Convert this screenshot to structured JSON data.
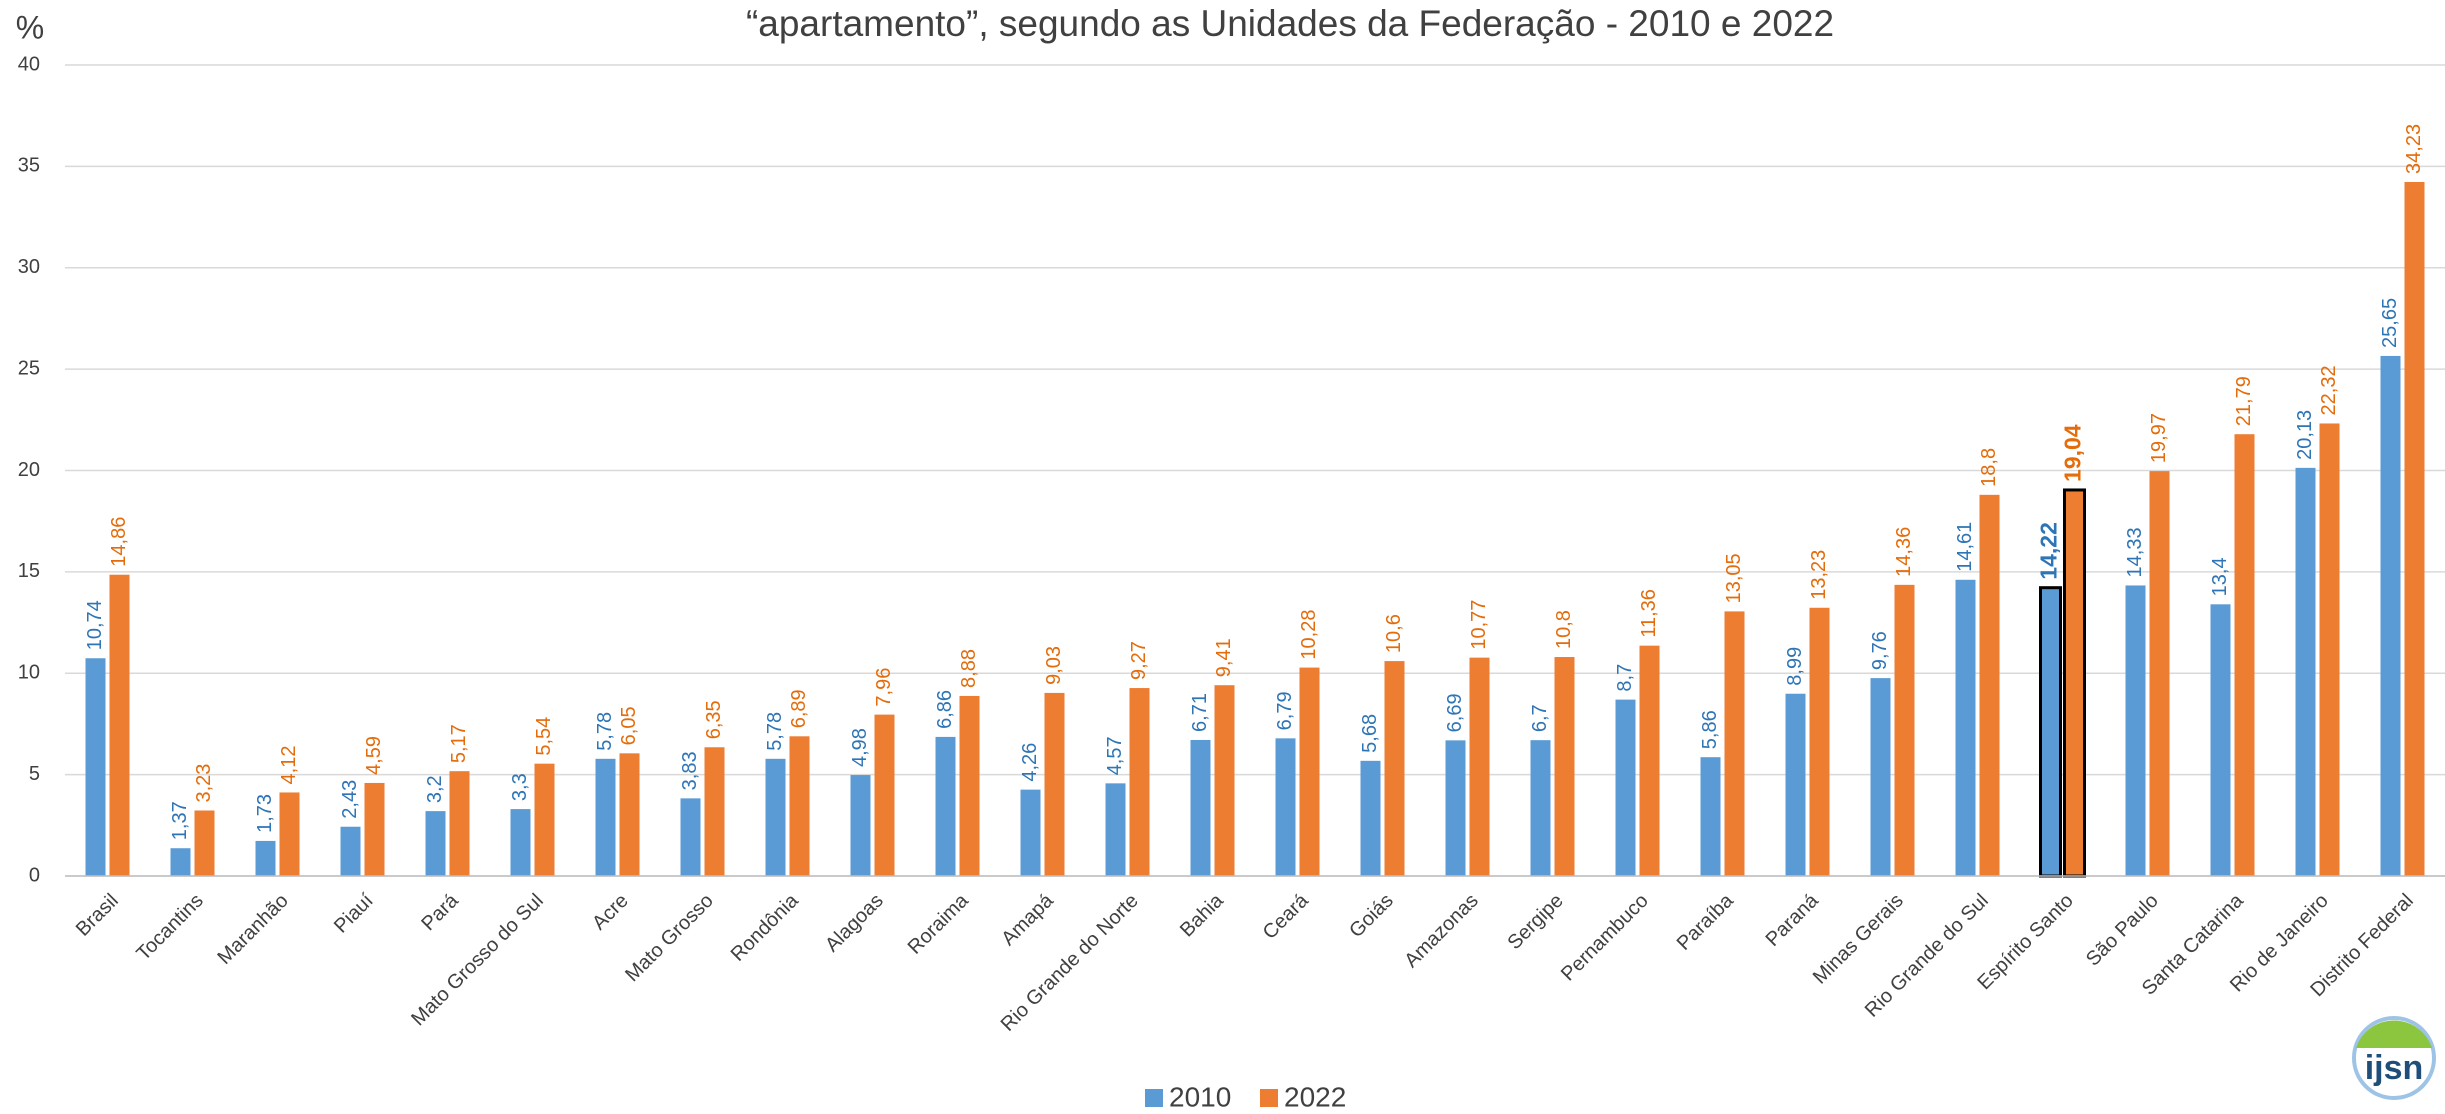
{
  "chart_data": {
    "type": "bar",
    "title": "“apartamento”, segundo as Unidades da Federação - 2010 e 2022",
    "y_label": "%",
    "logo": "ijsn",
    "categories": [
      "Brasil",
      "Tocantins",
      "Maranhão",
      "Piauí",
      "Pará",
      "Mato Grosso do Sul",
      "Acre",
      "Mato Grosso",
      "Rondônia",
      "Alagoas",
      "Roraima",
      "Amapá",
      "Rio Grande do Norte",
      "Bahia",
      "Ceará",
      "Goiás",
      "Amazonas",
      "Sergipe",
      "Pernambuco",
      "Paraíba",
      "Paraná",
      "Minas Gerais",
      "Rio Grande do Sul",
      "Espírito Santo",
      "São Paulo",
      "Santa Catarina",
      "Rio de Janeiro",
      "Distrito Federal"
    ],
    "highlight_category": "Espírito Santo",
    "series": [
      {
        "name": "2010",
        "color": "#5b9bd5",
        "label_color": "#2e75b6",
        "values": [
          10.74,
          1.37,
          1.73,
          2.43,
          3.2,
          3.3,
          5.78,
          3.83,
          5.78,
          4.98,
          6.86,
          4.26,
          4.57,
          6.71,
          6.79,
          5.68,
          6.69,
          6.7,
          8.7,
          5.86,
          8.99,
          9.76,
          14.61,
          14.22,
          14.33,
          13.4,
          20.13,
          25.65
        ],
        "value_labels": [
          "10,74",
          "1,37",
          "1,73",
          "2,43",
          "3,2",
          "3,3",
          "5,78",
          "3,83",
          "5,78",
          "4,98",
          "6,86",
          "4,26",
          "4,57",
          "6,71",
          "6,79",
          "5,68",
          "6,69",
          "6,7",
          "8,7",
          "5,86",
          "8,99",
          "9,76",
          "14,61",
          "14,22",
          "14,33",
          "13,4",
          "20,13",
          "25,65"
        ]
      },
      {
        "name": "2022",
        "color": "#ed7d31",
        "label_color": "#e46c0a",
        "values": [
          14.86,
          3.23,
          4.12,
          4.59,
          5.17,
          5.54,
          6.05,
          6.35,
          6.89,
          7.96,
          8.88,
          9.03,
          9.27,
          9.41,
          10.28,
          10.6,
          10.77,
          10.8,
          11.36,
          13.05,
          13.23,
          14.36,
          18.8,
          19.04,
          19.97,
          21.79,
          22.32,
          34.23
        ],
        "value_labels": [
          "14,86",
          "3,23",
          "4,12",
          "4,59",
          "5,17",
          "5,54",
          "6,05",
          "6,35",
          "6,89",
          "7,96",
          "8,88",
          "9,03",
          "9,27",
          "9,41",
          "10,28",
          "10,6",
          "10,77",
          "10,8",
          "11,36",
          "13,05",
          "13,23",
          "14,36",
          "18,8",
          "19,04",
          "19,97",
          "21,79",
          "22,32",
          "34,23"
        ]
      }
    ],
    "ylim": [
      0,
      40
    ],
    "yticks": [
      0,
      5,
      10,
      15,
      20,
      25,
      30,
      35,
      40
    ],
    "grid": true,
    "legend": "bottom"
  }
}
